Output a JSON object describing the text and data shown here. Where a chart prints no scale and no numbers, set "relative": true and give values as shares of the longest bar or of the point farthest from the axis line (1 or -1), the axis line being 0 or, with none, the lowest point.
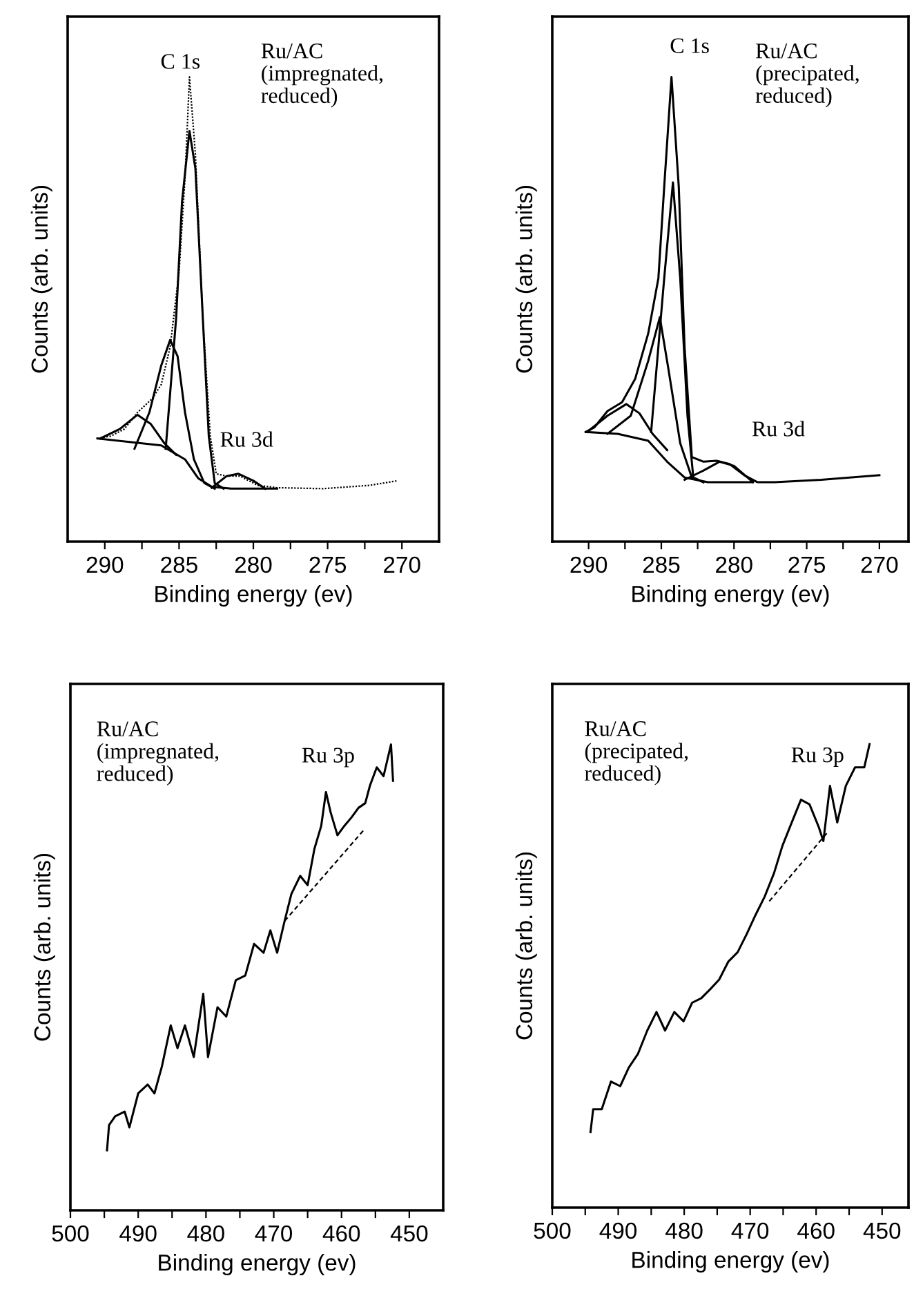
{
  "chart_data": [
    {
      "type": "line",
      "relative": true,
      "xlabel": "Binding energy (ev)",
      "ylabel": "Counts (arb. units)",
      "tick_labels": "x",
      "grid": false,
      "legend": false,
      "marker": "none",
      "xlim": [
        292.5,
        267.5
      ],
      "xticks": [
        290,
        {
          "value": 287.5,
          "label": null
        },
        285,
        {
          "value": 282.5,
          "label": null
        },
        280,
        {
          "value": 277.5,
          "label": null
        },
        275,
        {
          "value": 272.5,
          "label": null
        },
        270
      ],
      "annotations": [
        "C 1s",
        "Ru/AC\n(impregnated,\nreduced)",
        "Ru 3d"
      ],
      "series": [
        {
          "color": "#000000",
          "line_style": "dotted",
          "x": [
            290.5,
            289.6,
            288.7,
            287.8,
            286.8,
            286.2,
            285.6,
            285.0,
            284.6,
            284.3,
            283.9,
            283.4,
            282.9,
            282.5,
            281.8,
            280.9,
            279.7,
            278.4,
            275.3,
            272.2,
            270.3
          ],
          "values": [
            0.222,
            0.227,
            0.242,
            0.278,
            0.308,
            0.338,
            0.419,
            0.581,
            0.783,
            1.0,
            0.833,
            0.48,
            0.227,
            0.146,
            0.141,
            0.141,
            0.121,
            0.116,
            0.114,
            0.121,
            0.131
          ]
        },
        {
          "color": "#000000",
          "x": [
            285.9,
            285.2,
            284.8,
            284.3,
            283.9,
            283.4,
            283.0,
            282.6,
            282.0
          ],
          "values": [
            0.2,
            0.48,
            0.732,
            0.884,
            0.803,
            0.48,
            0.227,
            0.126,
            0.114
          ]
        },
        {
          "color": "#000000",
          "x": [
            288.0,
            287.0,
            286.2,
            285.6,
            285.1,
            284.6,
            284.0,
            283.3,
            282.6
          ],
          "values": [
            0.2,
            0.278,
            0.379,
            0.434,
            0.399,
            0.278,
            0.177,
            0.126,
            0.114
          ]
        },
        {
          "color": "#000000",
          "x": [
            290.3,
            289.0,
            287.8,
            286.9,
            286.0,
            285.2
          ],
          "values": [
            0.222,
            0.242,
            0.273,
            0.253,
            0.212,
            0.187
          ]
        },
        {
          "color": "#000000",
          "x": [
            282.8,
            281.8,
            281.0,
            280.0,
            279.2
          ],
          "values": [
            0.116,
            0.141,
            0.146,
            0.131,
            0.114
          ]
        },
        {
          "color": "#000000",
          "x": [
            290.5,
            286.2,
            284.6,
            283.7,
            282.8,
            281.5,
            278.4
          ],
          "values": [
            0.222,
            0.207,
            0.177,
            0.136,
            0.118,
            0.114,
            0.114
          ]
        }
      ]
    },
    {
      "type": "line",
      "relative": true,
      "xlabel": "Binding energy (ev)",
      "ylabel": "Counts (arb. units)",
      "tick_labels": "x",
      "grid": false,
      "legend": false,
      "marker": "none",
      "xlim": [
        292.5,
        268
      ],
      "xticks": [
        290,
        {
          "value": 287.5,
          "label": null
        },
        285,
        {
          "value": 282.5,
          "label": null
        },
        280,
        {
          "value": 277.5,
          "label": null
        },
        275,
        {
          "value": 272.5,
          "label": null
        },
        270
      ],
      "annotations": [
        "C 1s",
        "Ru/AC\n(precipated,\nreduced)",
        "Ru 3d"
      ],
      "series": [
        {
          "color": "#000000",
          "x": [
            290.2,
            289.6,
            288.7,
            287.7,
            286.8,
            285.9,
            285.2,
            284.8,
            284.3,
            283.8,
            283.4,
            282.9,
            282.1,
            281.2,
            280.3,
            279.3,
            278.4,
            277.2,
            274.0,
            270.0
          ],
          "values": [
            0.236,
            0.246,
            0.281,
            0.3,
            0.35,
            0.448,
            0.567,
            0.764,
            1.0,
            0.764,
            0.419,
            0.182,
            0.172,
            0.174,
            0.167,
            0.143,
            0.128,
            0.128,
            0.133,
            0.143
          ]
        },
        {
          "color": "#000000",
          "x": [
            285.7,
            284.8,
            284.2,
            283.7,
            283.2,
            282.8,
            282.1
          ],
          "values": [
            0.236,
            0.567,
            0.773,
            0.567,
            0.271,
            0.138,
            0.128
          ]
        },
        {
          "color": "#000000",
          "x": [
            288.7,
            287.1,
            285.9,
            285.1,
            284.5,
            283.7,
            282.9,
            282.1
          ],
          "values": [
            0.232,
            0.271,
            0.389,
            0.483,
            0.369,
            0.212,
            0.138,
            0.128
          ]
        },
        {
          "color": "#000000",
          "x": [
            290.1,
            288.7,
            287.4,
            286.5,
            285.6,
            284.6
          ],
          "values": [
            0.236,
            0.271,
            0.296,
            0.276,
            0.232,
            0.197
          ]
        },
        {
          "color": "#000000",
          "x": [
            283.4,
            282.1,
            281.0,
            280.0,
            278.7
          ],
          "values": [
            0.133,
            0.153,
            0.172,
            0.163,
            0.128
          ]
        },
        {
          "color": "#000000",
          "x": [
            290.2,
            288.0,
            285.9,
            284.6,
            283.4,
            281.8,
            278.7
          ],
          "values": [
            0.236,
            0.232,
            0.217,
            0.172,
            0.138,
            0.128,
            0.128
          ]
        }
      ]
    },
    {
      "type": "line",
      "relative": true,
      "xlabel": "Binding energy (ev)",
      "ylabel": "Counts (arb. units)",
      "tick_labels": "x",
      "grid": false,
      "legend": false,
      "marker": "none",
      "xlim": [
        500,
        445
      ],
      "xticks": [
        500,
        {
          "value": 495,
          "label": null
        },
        490,
        {
          "value": 485,
          "label": null
        },
        480,
        {
          "value": 475,
          "label": null
        },
        470,
        {
          "value": 465,
          "label": null
        },
        460,
        {
          "value": 455,
          "label": null
        },
        450
      ],
      "annotations": [
        "Ru/AC\n(impregnated,\nreduced)",
        "Ru 3p"
      ],
      "series": [
        {
          "color": "#000000",
          "x": [
            494.6,
            494.3,
            493.4,
            492.0,
            491.3,
            490.0,
            488.6,
            487.6,
            486.5,
            485.2,
            484.2,
            483.1,
            481.8,
            480.4,
            479.7,
            478.3,
            477.0,
            475.6,
            474.2,
            472.9,
            471.5,
            470.5,
            469.5,
            468.4,
            467.4,
            466.1,
            465.0,
            464.0,
            463.0,
            462.3,
            461.6,
            460.6,
            459.6,
            458.5,
            457.5,
            456.5,
            455.8,
            454.8,
            453.8,
            452.7,
            452.4
          ],
          "values": [
            0.129,
            0.183,
            0.202,
            0.212,
            0.178,
            0.251,
            0.27,
            0.251,
            0.309,
            0.397,
            0.348,
            0.397,
            0.329,
            0.465,
            0.329,
            0.436,
            0.416,
            0.494,
            0.504,
            0.572,
            0.553,
            0.601,
            0.553,
            0.621,
            0.679,
            0.718,
            0.698,
            0.776,
            0.825,
            0.898,
            0.854,
            0.805,
            0.825,
            0.844,
            0.864,
            0.874,
            0.912,
            0.951,
            0.932,
            1.0,
            0.922
          ]
        },
        {
          "color": "#000000",
          "line_style": "dashed",
          "x": [
            468.4,
            456.8
          ],
          "values": [
            0.621,
            0.815
          ]
        }
      ]
    },
    {
      "type": "line",
      "relative": true,
      "xlabel": "Binding energy (ev)",
      "ylabel": "Counts (arb. units)",
      "tick_labels": "x",
      "grid": false,
      "legend": false,
      "marker": "none",
      "xlim": [
        500,
        446
      ],
      "xticks": [
        500,
        {
          "value": 495,
          "label": null
        },
        490,
        {
          "value": 485,
          "label": null
        },
        480,
        {
          "value": 475,
          "label": null
        },
        470,
        {
          "value": 465,
          "label": null
        },
        460,
        {
          "value": 455,
          "label": null
        },
        450
      ],
      "annotations": [
        "Ru/AC\n(precipated,\nreduced)",
        "Ru 3p"
      ],
      "series": [
        {
          "color": "#000000",
          "x": [
            494.2,
            493.8,
            492.5,
            491.1,
            489.7,
            488.4,
            487.0,
            485.6,
            484.2,
            482.9,
            481.5,
            480.1,
            478.8,
            477.4,
            476.0,
            474.7,
            473.3,
            471.9,
            470.5,
            469.2,
            467.8,
            466.4,
            465.1,
            463.7,
            462.3,
            461.0,
            459.6,
            458.9,
            457.9,
            456.8,
            455.5,
            454.1,
            452.7,
            451.9
          ],
          "values": [
            0.163,
            0.212,
            0.212,
            0.272,
            0.262,
            0.302,
            0.332,
            0.382,
            0.422,
            0.382,
            0.422,
            0.402,
            0.442,
            0.452,
            0.472,
            0.492,
            0.531,
            0.551,
            0.591,
            0.631,
            0.671,
            0.721,
            0.781,
            0.831,
            0.88,
            0.87,
            0.821,
            0.791,
            0.91,
            0.831,
            0.91,
            0.95,
            0.95,
            1.0
          ]
        },
        {
          "color": "#000000",
          "line_style": "dashed",
          "x": [
            467.1,
            458.2
          ],
          "values": [
            0.661,
            0.811
          ]
        }
      ]
    }
  ]
}
